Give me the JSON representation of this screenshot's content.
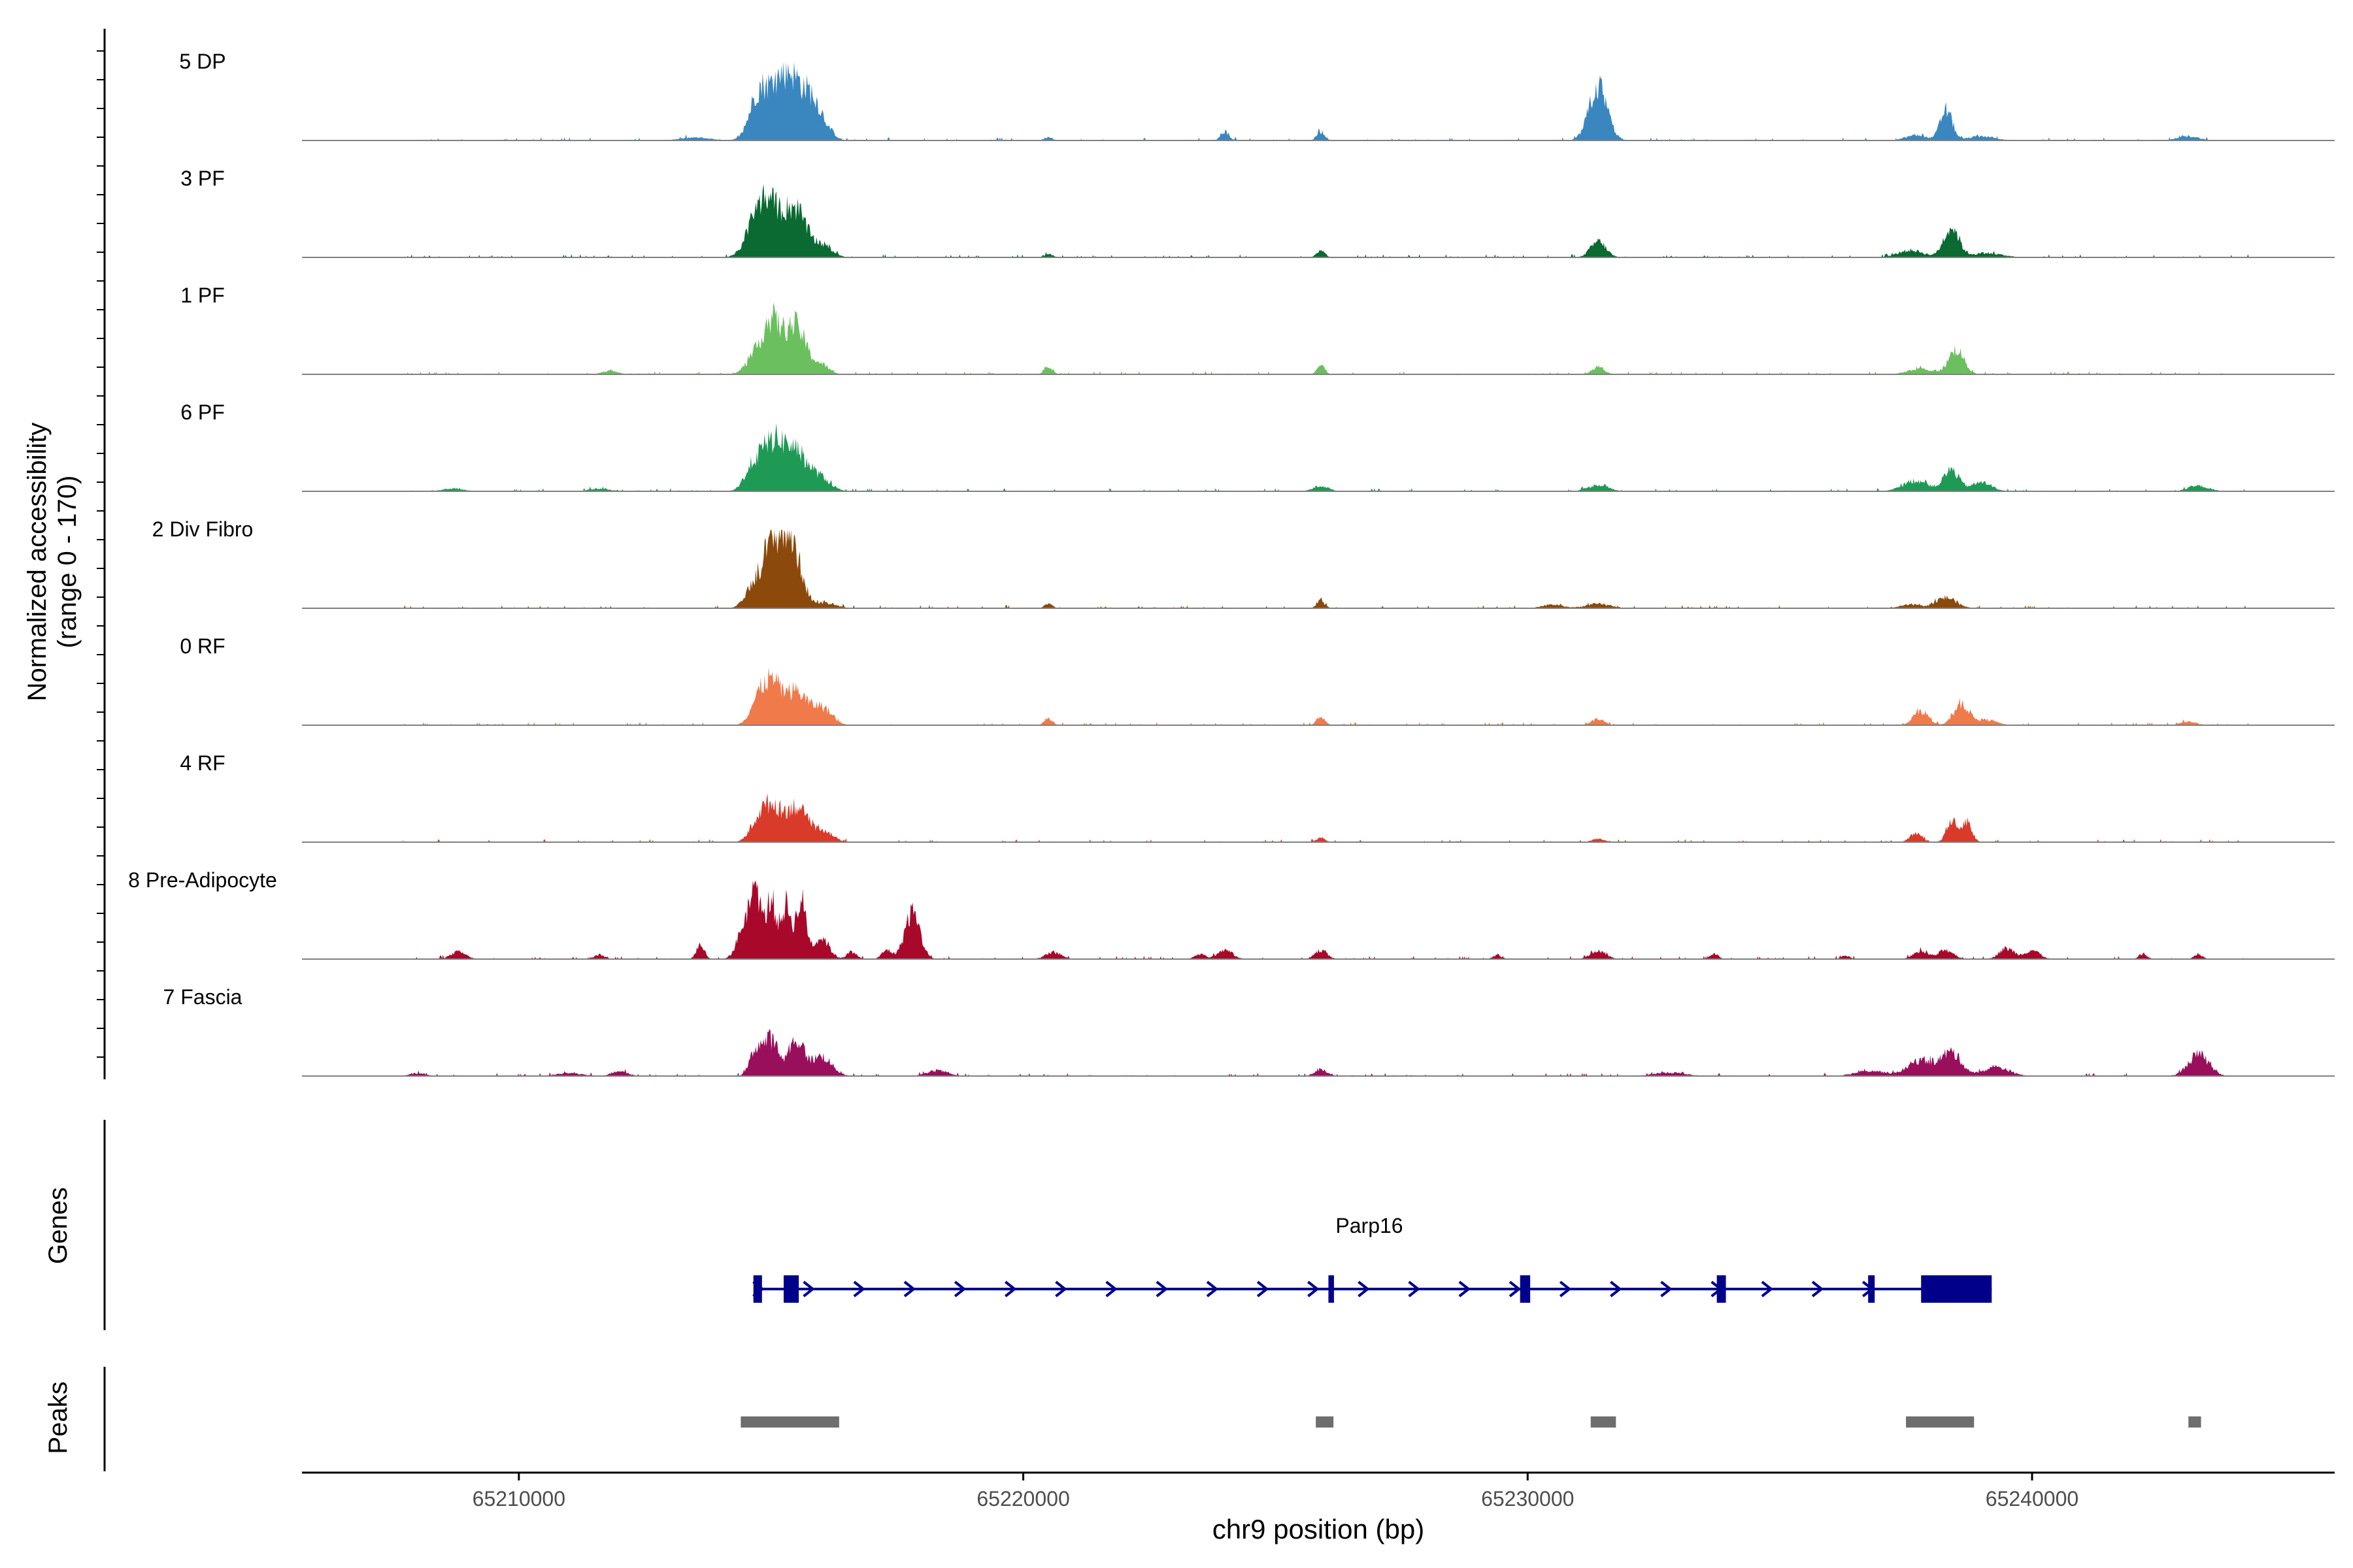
{
  "chart_data": {
    "type": "area",
    "title": "",
    "ylabel_line1": "Normalized accessibility",
    "ylabel_line2": "(range 0 - 170)",
    "ylim": [
      0,
      170
    ],
    "xlabel": "chr9 position (bp)",
    "xlim": [
      65205700,
      65246000
    ],
    "x_ticks": [
      65210000,
      65220000,
      65230000,
      65240000
    ],
    "x_tick_labels": [
      "65210000",
      "65220000",
      "65230000",
      "65240000"
    ],
    "track_start": 65207700,
    "track_end": 65244300,
    "series": [
      {
        "name": "5 DP",
        "color": "#3A87C0",
        "peaks": [
          [
            65215000,
            130,
            250
          ],
          [
            65215400,
            150,
            200
          ],
          [
            65215800,
            110,
            180
          ],
          [
            65214700,
            70,
            150
          ],
          [
            65216100,
            25,
            150
          ],
          [
            65224000,
            25,
            80
          ],
          [
            65225900,
            25,
            80
          ],
          [
            65231400,
            150,
            180
          ],
          [
            65238300,
            85,
            120
          ],
          [
            65237700,
            15,
            200
          ],
          [
            65239000,
            12,
            250
          ],
          [
            65220500,
            10,
            80
          ],
          [
            65243100,
            12,
            200
          ],
          [
            65213500,
            8,
            300
          ]
        ]
      },
      {
        "name": "3 PF",
        "color": "#0A6A32",
        "peaks": [
          [
            65215000,
            130,
            250
          ],
          [
            65215500,
            120,
            200
          ],
          [
            65214700,
            75,
            200
          ],
          [
            65216000,
            35,
            200
          ],
          [
            65225900,
            20,
            80
          ],
          [
            65231400,
            45,
            150
          ],
          [
            65238400,
            85,
            150
          ],
          [
            65237600,
            20,
            250
          ],
          [
            65239100,
            12,
            300
          ],
          [
            65220500,
            10,
            80
          ]
        ]
      },
      {
        "name": "1 PF",
        "color": "#6BBF5E",
        "peaks": [
          [
            65215000,
            150,
            200
          ],
          [
            65215500,
            130,
            200
          ],
          [
            65214600,
            30,
            150
          ],
          [
            65216000,
            25,
            150
          ],
          [
            65220500,
            20,
            80
          ],
          [
            65225900,
            25,
            80
          ],
          [
            65231400,
            20,
            120
          ],
          [
            65238500,
            70,
            150
          ],
          [
            65237800,
            15,
            250
          ],
          [
            65211800,
            10,
            150
          ]
        ]
      },
      {
        "name": "6 PF",
        "color": "#1E9A55",
        "peaks": [
          [
            65215000,
            130,
            250
          ],
          [
            65215500,
            100,
            250
          ],
          [
            65214600,
            40,
            150
          ],
          [
            65216000,
            30,
            200
          ],
          [
            65225900,
            15,
            150
          ],
          [
            65231400,
            18,
            200
          ],
          [
            65238400,
            60,
            150
          ],
          [
            65237700,
            30,
            250
          ],
          [
            65239000,
            25,
            200
          ],
          [
            65208700,
            8,
            200
          ],
          [
            65211600,
            8,
            200
          ],
          [
            65243300,
            15,
            200
          ]
        ]
      },
      {
        "name": "2 Div Fibro",
        "color": "#8B4A0B",
        "peaks": [
          [
            65215000,
            170,
            200
          ],
          [
            65215400,
            175,
            200
          ],
          [
            65214600,
            40,
            150
          ],
          [
            65216100,
            15,
            200
          ],
          [
            65220500,
            12,
            80
          ],
          [
            65225900,
            20,
            80
          ],
          [
            65230500,
            10,
            200
          ],
          [
            65231400,
            12,
            250
          ],
          [
            65238300,
            30,
            200
          ],
          [
            65237600,
            10,
            200
          ]
        ]
      },
      {
        "name": "0 RF",
        "color": "#F07A4A",
        "peaks": [
          [
            65215000,
            120,
            200
          ],
          [
            65215500,
            90,
            200
          ],
          [
            65214700,
            40,
            150
          ],
          [
            65216000,
            50,
            200
          ],
          [
            65220500,
            20,
            80
          ],
          [
            65225900,
            25,
            80
          ],
          [
            65231400,
            18,
            120
          ],
          [
            65237800,
            40,
            150
          ],
          [
            65238600,
            60,
            150
          ],
          [
            65239100,
            15,
            200
          ],
          [
            65243100,
            10,
            150
          ]
        ]
      },
      {
        "name": "4 RF",
        "color": "#DA3A2A",
        "peaks": [
          [
            65215000,
            100,
            200
          ],
          [
            65215500,
            95,
            200
          ],
          [
            65214700,
            35,
            150
          ],
          [
            65216000,
            35,
            200
          ],
          [
            65225900,
            12,
            80
          ],
          [
            65231400,
            10,
            120
          ],
          [
            65237700,
            25,
            120
          ],
          [
            65238400,
            60,
            100
          ],
          [
            65238700,
            60,
            100
          ]
        ]
      },
      {
        "name": "8 Pre-Adipocyte",
        "color": "#A8082A",
        "peaks": [
          [
            65214700,
            170,
            100
          ],
          [
            65215000,
            165,
            100
          ],
          [
            65215300,
            150,
            100
          ],
          [
            65215600,
            160,
            100
          ],
          [
            65214500,
            100,
            150
          ],
          [
            65216000,
            60,
            150
          ],
          [
            65217800,
            130,
            150
          ],
          [
            65213600,
            40,
            80
          ],
          [
            65208800,
            20,
            150
          ],
          [
            65211600,
            12,
            100
          ],
          [
            65217300,
            25,
            100
          ],
          [
            65216600,
            20,
            100
          ],
          [
            65220600,
            20,
            150
          ],
          [
            65224000,
            25,
            150
          ],
          [
            65225900,
            25,
            120
          ],
          [
            65223500,
            15,
            100
          ],
          [
            65231400,
            25,
            150
          ],
          [
            65237800,
            20,
            150
          ],
          [
            65238300,
            25,
            150
          ],
          [
            65239500,
            30,
            150
          ],
          [
            65240000,
            25,
            150
          ],
          [
            65233700,
            15,
            80
          ],
          [
            65242200,
            15,
            80
          ],
          [
            65243300,
            15,
            80
          ],
          [
            65236300,
            10,
            80
          ],
          [
            65229400,
            12,
            80
          ]
        ]
      },
      {
        "name": "7 Fascia",
        "color": "#9A0F5C",
        "peaks": [
          [
            65214700,
            70,
            120
          ],
          [
            65215000,
            100,
            150
          ],
          [
            65215500,
            100,
            150
          ],
          [
            65216000,
            55,
            200
          ],
          [
            65218300,
            15,
            200
          ],
          [
            65212000,
            15,
            150
          ],
          [
            65225900,
            20,
            120
          ],
          [
            65237800,
            45,
            250
          ],
          [
            65238400,
            65,
            200
          ],
          [
            65239300,
            25,
            250
          ],
          [
            65243300,
            60,
            200
          ],
          [
            65236800,
            15,
            300
          ],
          [
            65232800,
            10,
            300
          ],
          [
            65208000,
            8,
            150
          ],
          [
            65211000,
            8,
            250
          ]
        ]
      }
    ],
    "gene": {
      "name": "Parp16",
      "color": "#00008B",
      "start": 65214700,
      "end": 65239200,
      "exons": [
        [
          65214650,
          65214820,
          "thin"
        ],
        [
          65215250,
          65215550,
          "thin"
        ],
        [
          65226050,
          65226160,
          "thin"
        ],
        [
          65229850,
          65230050,
          "thin"
        ],
        [
          65233750,
          65233930,
          "thin"
        ],
        [
          65236750,
          65236880,
          "thin"
        ],
        [
          65237800,
          65239200,
          "thick"
        ]
      ]
    },
    "peaks_track": {
      "color": "#6E6E6E",
      "regions": [
        [
          65214400,
          65216350
        ],
        [
          65225800,
          65226150
        ],
        [
          65231250,
          65231750
        ],
        [
          65237500,
          65238850
        ],
        [
          65243100,
          65243350
        ]
      ]
    },
    "panel_labels": {
      "genes": "Genes",
      "peaks": "Peaks"
    }
  }
}
